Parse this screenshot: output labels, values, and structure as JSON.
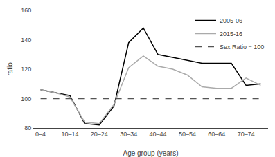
{
  "chart_data": {
    "type": "line",
    "xlabel": "Age group (years)",
    "ylabel": "ratio",
    "categories": [
      "0–4",
      null,
      "10–14",
      null,
      "20–24",
      null,
      "30–34",
      null,
      "40–44",
      null,
      "50–54",
      null,
      "60–64",
      null,
      "70–74",
      null
    ],
    "series": [
      {
        "name": "2005-06",
        "color": "#000000",
        "values": [
          106,
          104,
          102,
          83,
          82,
          95,
          138,
          148,
          130,
          128,
          126,
          124,
          124,
          124,
          109,
          110
        ]
      },
      {
        "name": "2015-16",
        "color": "#aaaaaa",
        "values": [
          106,
          104,
          101,
          84,
          83,
          96,
          121,
          129,
          122,
          120,
          116,
          108,
          107,
          107,
          114,
          109
        ]
      },
      {
        "name": "Sex Ratio = 100",
        "color": "#555555",
        "line_style": "dashed",
        "values": [
          100,
          100,
          100,
          100,
          100,
          100,
          100,
          100,
          100,
          100,
          100,
          100,
          100,
          100,
          100,
          100
        ]
      }
    ],
    "ylim": [
      80,
      160
    ],
    "yticks": [
      80,
      100,
      120,
      140,
      160
    ],
    "grid": false,
    "legend": "upper right"
  }
}
